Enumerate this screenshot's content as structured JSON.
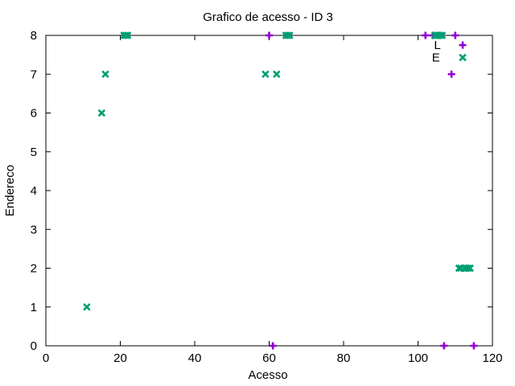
{
  "chart_data": {
    "type": "scatter",
    "title": "Grafico de acesso - ID 3",
    "xlabel": "Acesso",
    "ylabel": "Endereco",
    "xlim": [
      0,
      120
    ],
    "ylim": [
      0,
      8
    ],
    "xticks": [
      0,
      20,
      40,
      60,
      80,
      100,
      120
    ],
    "yticks": [
      0,
      1,
      2,
      3,
      4,
      5,
      6,
      7,
      8
    ],
    "grid": false,
    "legend": "none",
    "series": [
      {
        "marker": "plus",
        "color": "#9400d3",
        "points": [
          [
            60,
            8
          ],
          [
            61,
            0
          ],
          [
            102,
            8
          ],
          [
            104,
            8
          ],
          [
            106,
            8
          ],
          [
            107,
            0
          ],
          [
            109,
            7
          ],
          [
            110,
            8
          ],
          [
            112,
            7.75
          ],
          [
            115,
            0
          ]
        ]
      },
      {
        "marker": "cross",
        "color": "#009e73",
        "points": [
          [
            11,
            1
          ],
          [
            15,
            6
          ],
          [
            16,
            7
          ],
          [
            21,
            8
          ],
          [
            21.5,
            8
          ],
          [
            22,
            8
          ],
          [
            59,
            7
          ],
          [
            62,
            7
          ],
          [
            64.5,
            8
          ],
          [
            65,
            8
          ],
          [
            65.5,
            8
          ],
          [
            104.5,
            8
          ],
          [
            105,
            8
          ],
          [
            105.5,
            8
          ],
          [
            106,
            8
          ],
          [
            106.5,
            8
          ],
          [
            111,
            2
          ],
          [
            111.5,
            2
          ],
          [
            112,
            7.43
          ],
          [
            112.5,
            2
          ],
          [
            113,
            2
          ],
          [
            113.5,
            2
          ],
          [
            114,
            2
          ]
        ]
      }
    ],
    "annotations": [
      {
        "text": "L",
        "x": 105.2,
        "y": 7.65
      },
      {
        "text": "E",
        "x": 104.8,
        "y": 7.33
      }
    ]
  }
}
